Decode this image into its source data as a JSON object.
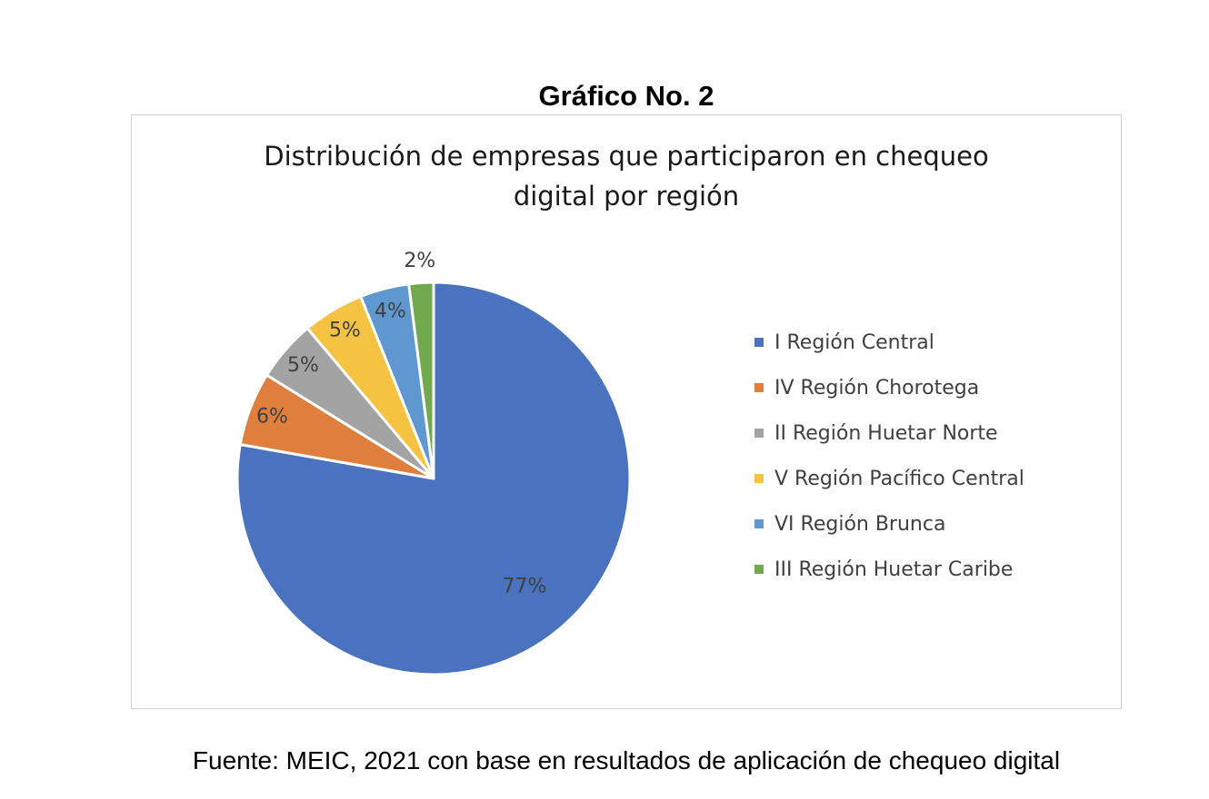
{
  "heading": "Gráfico No. 2",
  "source": "Fuente: MEIC, 2021 con base en resultados de aplicación de chequeo digital",
  "chart_data": {
    "type": "pie",
    "title": "Distribución de empresas que participaron en chequeo digital por región",
    "title_lines": [
      "Distribución de empresas que participaron en chequeo",
      "digital por región"
    ],
    "legend_position": "right",
    "slices": [
      {
        "name": "I Región Central",
        "value": 77,
        "label": "77%",
        "color": "#4a72bf"
      },
      {
        "name": "IV Región Chorotega",
        "value": 6,
        "label": "6%",
        "color": "#e07f3d"
      },
      {
        "name": "II Región Huetar Norte",
        "value": 5,
        "label": "5%",
        "color": "#a3a3a3"
      },
      {
        "name": "V Región Pacífico Central",
        "value": 5,
        "label": "5%",
        "color": "#f5c242"
      },
      {
        "name": "VI Región Brunca",
        "value": 4,
        "label": "4%",
        "color": "#5f98d1"
      },
      {
        "name": "III Región Huetar Caribe",
        "value": 2,
        "label": "2%",
        "color": "#72a84e"
      }
    ]
  }
}
